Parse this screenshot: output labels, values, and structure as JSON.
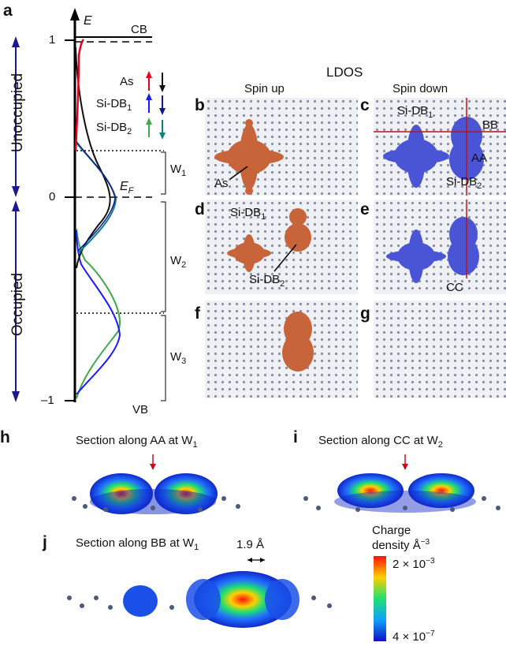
{
  "panel_a": {
    "letter": "a",
    "axis_label": "E",
    "cb": "CB",
    "vb": "VB",
    "tick_top": "1",
    "tick_zero": "0",
    "tick_bottom": "–1",
    "fermi": "E",
    "fermi_sub": "F",
    "unoccupied": "Unoccupied",
    "occupied": "Occupied",
    "legend": [
      {
        "label": "As",
        "sub": "",
        "up": "#e8001a",
        "down": "#111111"
      },
      {
        "label": "Si-DB",
        "sub": "1",
        "up": "#1a1aff",
        "down": "#0a1a8c"
      },
      {
        "label": "Si-DB",
        "sub": "2",
        "up": "#41a84a",
        "down": "#0e7f7f"
      }
    ],
    "windows": [
      {
        "label": "W",
        "sub": "1"
      },
      {
        "label": "W",
        "sub": "2"
      },
      {
        "label": "W",
        "sub": "3"
      }
    ]
  },
  "ldos": {
    "title": "LDOS",
    "spin_up": "Spin up",
    "spin_down": "Spin down",
    "letters": [
      "b",
      "c",
      "d",
      "e",
      "f",
      "g"
    ],
    "ann_as": "As",
    "ann_sidb1": "Si-DB",
    "ann_sidb1_sub": "1",
    "ann_sidb2": "Si-DB",
    "ann_sidb2_sub": "2",
    "ann_bb": "BB",
    "ann_aa": "AA",
    "ann_cc": "CC",
    "up_color": "#c8643a",
    "down_color": "#4a55d6"
  },
  "sections": {
    "h_letter": "h",
    "h_title": "Section along AA at W",
    "h_sub": "1",
    "i_letter": "i",
    "i_title": "Section along CC at W",
    "i_sub": "2",
    "j_letter": "j",
    "j_title": "Section along BB at W",
    "j_sub": "1",
    "distance": "1.9 Å"
  },
  "colorbar": {
    "title_line1": "Charge",
    "title_line2": "density Å",
    "title_sup": "−3",
    "max_label": "2 × 10",
    "max_sup": "−3",
    "min_label": "4 × 10",
    "min_sup": "−7"
  }
}
